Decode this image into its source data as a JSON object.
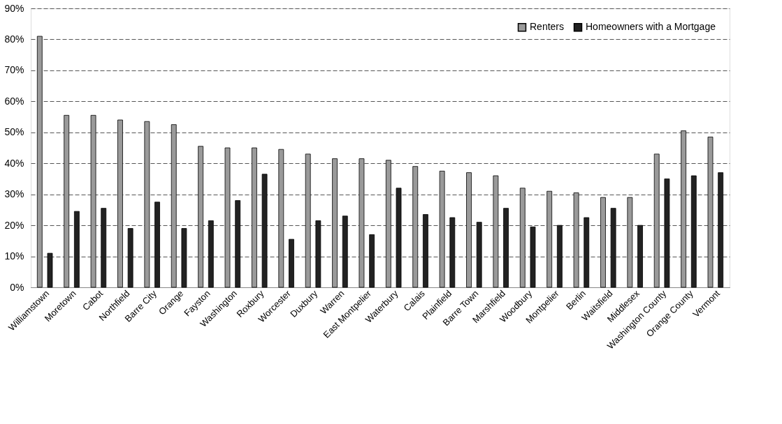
{
  "chart_data": {
    "type": "bar",
    "categories": [
      "Williamstown",
      "Moretown",
      "Cabot",
      "Northfield",
      "Barre City",
      "Orange",
      "Fayston",
      "Washington",
      "Roxbury",
      "Worcester",
      "Duxbury",
      "Warren",
      "East Montpelier",
      "Waterbury",
      "Calais",
      "Plainfield",
      "Barre Town",
      "Marshfield",
      "Woodbury",
      "Montpelier",
      "Berlin",
      "Waitsfield",
      "Middlesex",
      "Washington County",
      "Orange County",
      "Vermont"
    ],
    "series": [
      {
        "name": "Renters",
        "color": "#9a9a9a",
        "values": [
          81,
          55.5,
          55.5,
          54,
          53.5,
          52.5,
          45.5,
          45,
          45,
          44.5,
          43,
          41.5,
          41.5,
          41,
          39,
          37.5,
          37,
          36,
          32,
          31,
          30.5,
          29,
          29,
          43,
          50.5,
          48.5
        ]
      },
      {
        "name": "Homeowners with a Mortgage",
        "color": "#222222",
        "values": [
          11,
          24.5,
          25.5,
          19,
          27.5,
          19,
          21.5,
          28,
          36.5,
          15.5,
          21.5,
          23,
          17,
          32,
          23.5,
          22.5,
          21,
          25.5,
          19.5,
          20,
          22.5,
          25.5,
          20,
          35,
          36,
          37
        ]
      }
    ],
    "ylim": [
      0,
      90
    ],
    "yticks": [
      {
        "value": 0,
        "label": "0%"
      },
      {
        "value": 10,
        "label": "10%"
      },
      {
        "value": 20,
        "label": "20%"
      },
      {
        "value": 30,
        "label": "30%"
      },
      {
        "value": 40,
        "label": "40%"
      },
      {
        "value": 50,
        "label": "50%"
      },
      {
        "value": 60,
        "label": "60%"
      },
      {
        "value": 70,
        "label": "70%"
      },
      {
        "value": 80,
        "label": "80%"
      },
      {
        "value": 90,
        "label": "90%"
      }
    ],
    "grid": "y",
    "legend": "top right"
  }
}
